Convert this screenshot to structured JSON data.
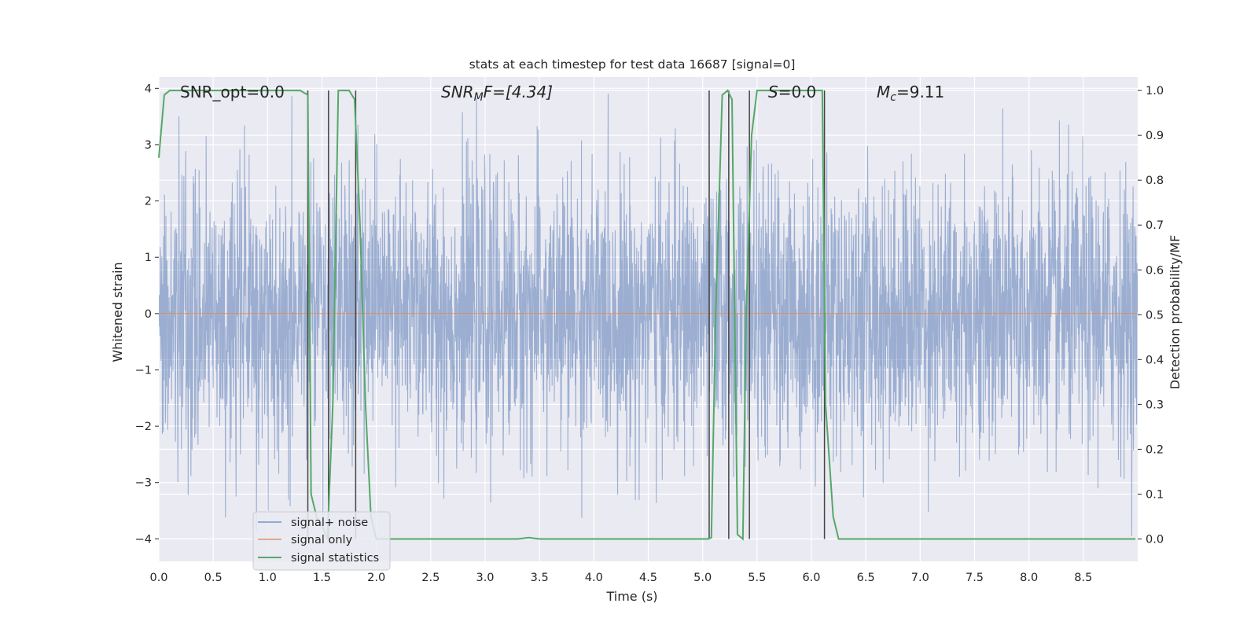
{
  "chart_data": {
    "type": "line",
    "title": "stats at each timestep for test data 16687 [signal=0]",
    "xlabel": "Time (s)",
    "ylabel_left": "Whitened strain",
    "ylabel_right": "Detection probability/MF",
    "xlim": [
      0,
      9.0
    ],
    "ylim_left": [
      -4.4,
      4.2
    ],
    "ylim_right": [
      -0.05,
      1.03
    ],
    "xticks": [
      "0.0",
      "0.5",
      "1.0",
      "1.5",
      "2.0",
      "2.5",
      "3.0",
      "3.5",
      "4.0",
      "4.5",
      "5.0",
      "5.5",
      "6.0",
      "6.5",
      "7.0",
      "7.5",
      "8.0",
      "8.5"
    ],
    "yticks_left": [
      "−4",
      "−3",
      "−2",
      "−1",
      "0",
      "1",
      "2",
      "3",
      "4"
    ],
    "yticks_right": [
      "0.0",
      "0.1",
      "0.2",
      "0.3",
      "0.4",
      "0.5",
      "0.6",
      "0.7",
      "0.8",
      "0.9",
      "1.0"
    ],
    "grid": true,
    "annotations": {
      "snr_opt": "SNR_opt=0.0",
      "snr_mf_base": "SNR",
      "snr_mf_sub": "M",
      "snr_mf_rest": "F=[4.34]",
      "s_italic": "S",
      "s_rest": "=0.0",
      "mc_base": "M",
      "mc_sub": "c",
      "mc_rest": "=9.11"
    },
    "legend": {
      "placement": "lower-left",
      "entries": [
        "signal+ noise",
        "signal only",
        "signal statistics"
      ]
    },
    "colors": {
      "background": "#eaeaf2",
      "noise": "#4c72b0",
      "signal_only": "#dd8452",
      "statistics": "#55a868",
      "vlines": "#444444"
    },
    "series": [
      {
        "name": "signal+ noise",
        "description_values": "whitened noise, roughly within ±2.5 with peaks to ±4",
        "x_range": [
          0,
          9.0
        ],
        "typical_amplitude": 1.2
      },
      {
        "name": "signal only",
        "x": [
          0,
          9.0
        ],
        "y": [
          0,
          0
        ]
      },
      {
        "name": "signal statistics",
        "x": [
          0.0,
          0.05,
          0.1,
          1.3,
          1.37,
          1.4,
          1.45,
          1.5,
          1.55,
          1.6,
          1.65,
          1.75,
          1.8,
          1.85,
          1.9,
          1.95,
          2.0,
          3.3,
          3.4,
          3.5,
          5.05,
          5.08,
          5.12,
          5.18,
          5.23,
          5.27,
          5.32,
          5.37,
          5.4,
          5.45,
          5.5,
          5.56,
          6.05,
          6.1,
          6.13,
          6.2,
          6.25,
          8.98
        ],
        "y": [
          0.85,
          0.99,
          1.0,
          1.0,
          0.99,
          0.1,
          0.05,
          0.03,
          0.0,
          0.3,
          1.0,
          1.0,
          0.98,
          0.7,
          0.3,
          0.05,
          0.0,
          0.0,
          0.003,
          0.0,
          0.0,
          0.003,
          0.5,
          0.99,
          1.0,
          0.98,
          0.01,
          0.0,
          0.5,
          0.9,
          1.0,
          1.0,
          1.0,
          1.0,
          0.3,
          0.05,
          0.0,
          0.0
        ]
      }
    ],
    "vlines_x": [
      1.37,
      1.56,
      1.81,
      5.06,
      5.24,
      5.43,
      6.12
    ]
  }
}
